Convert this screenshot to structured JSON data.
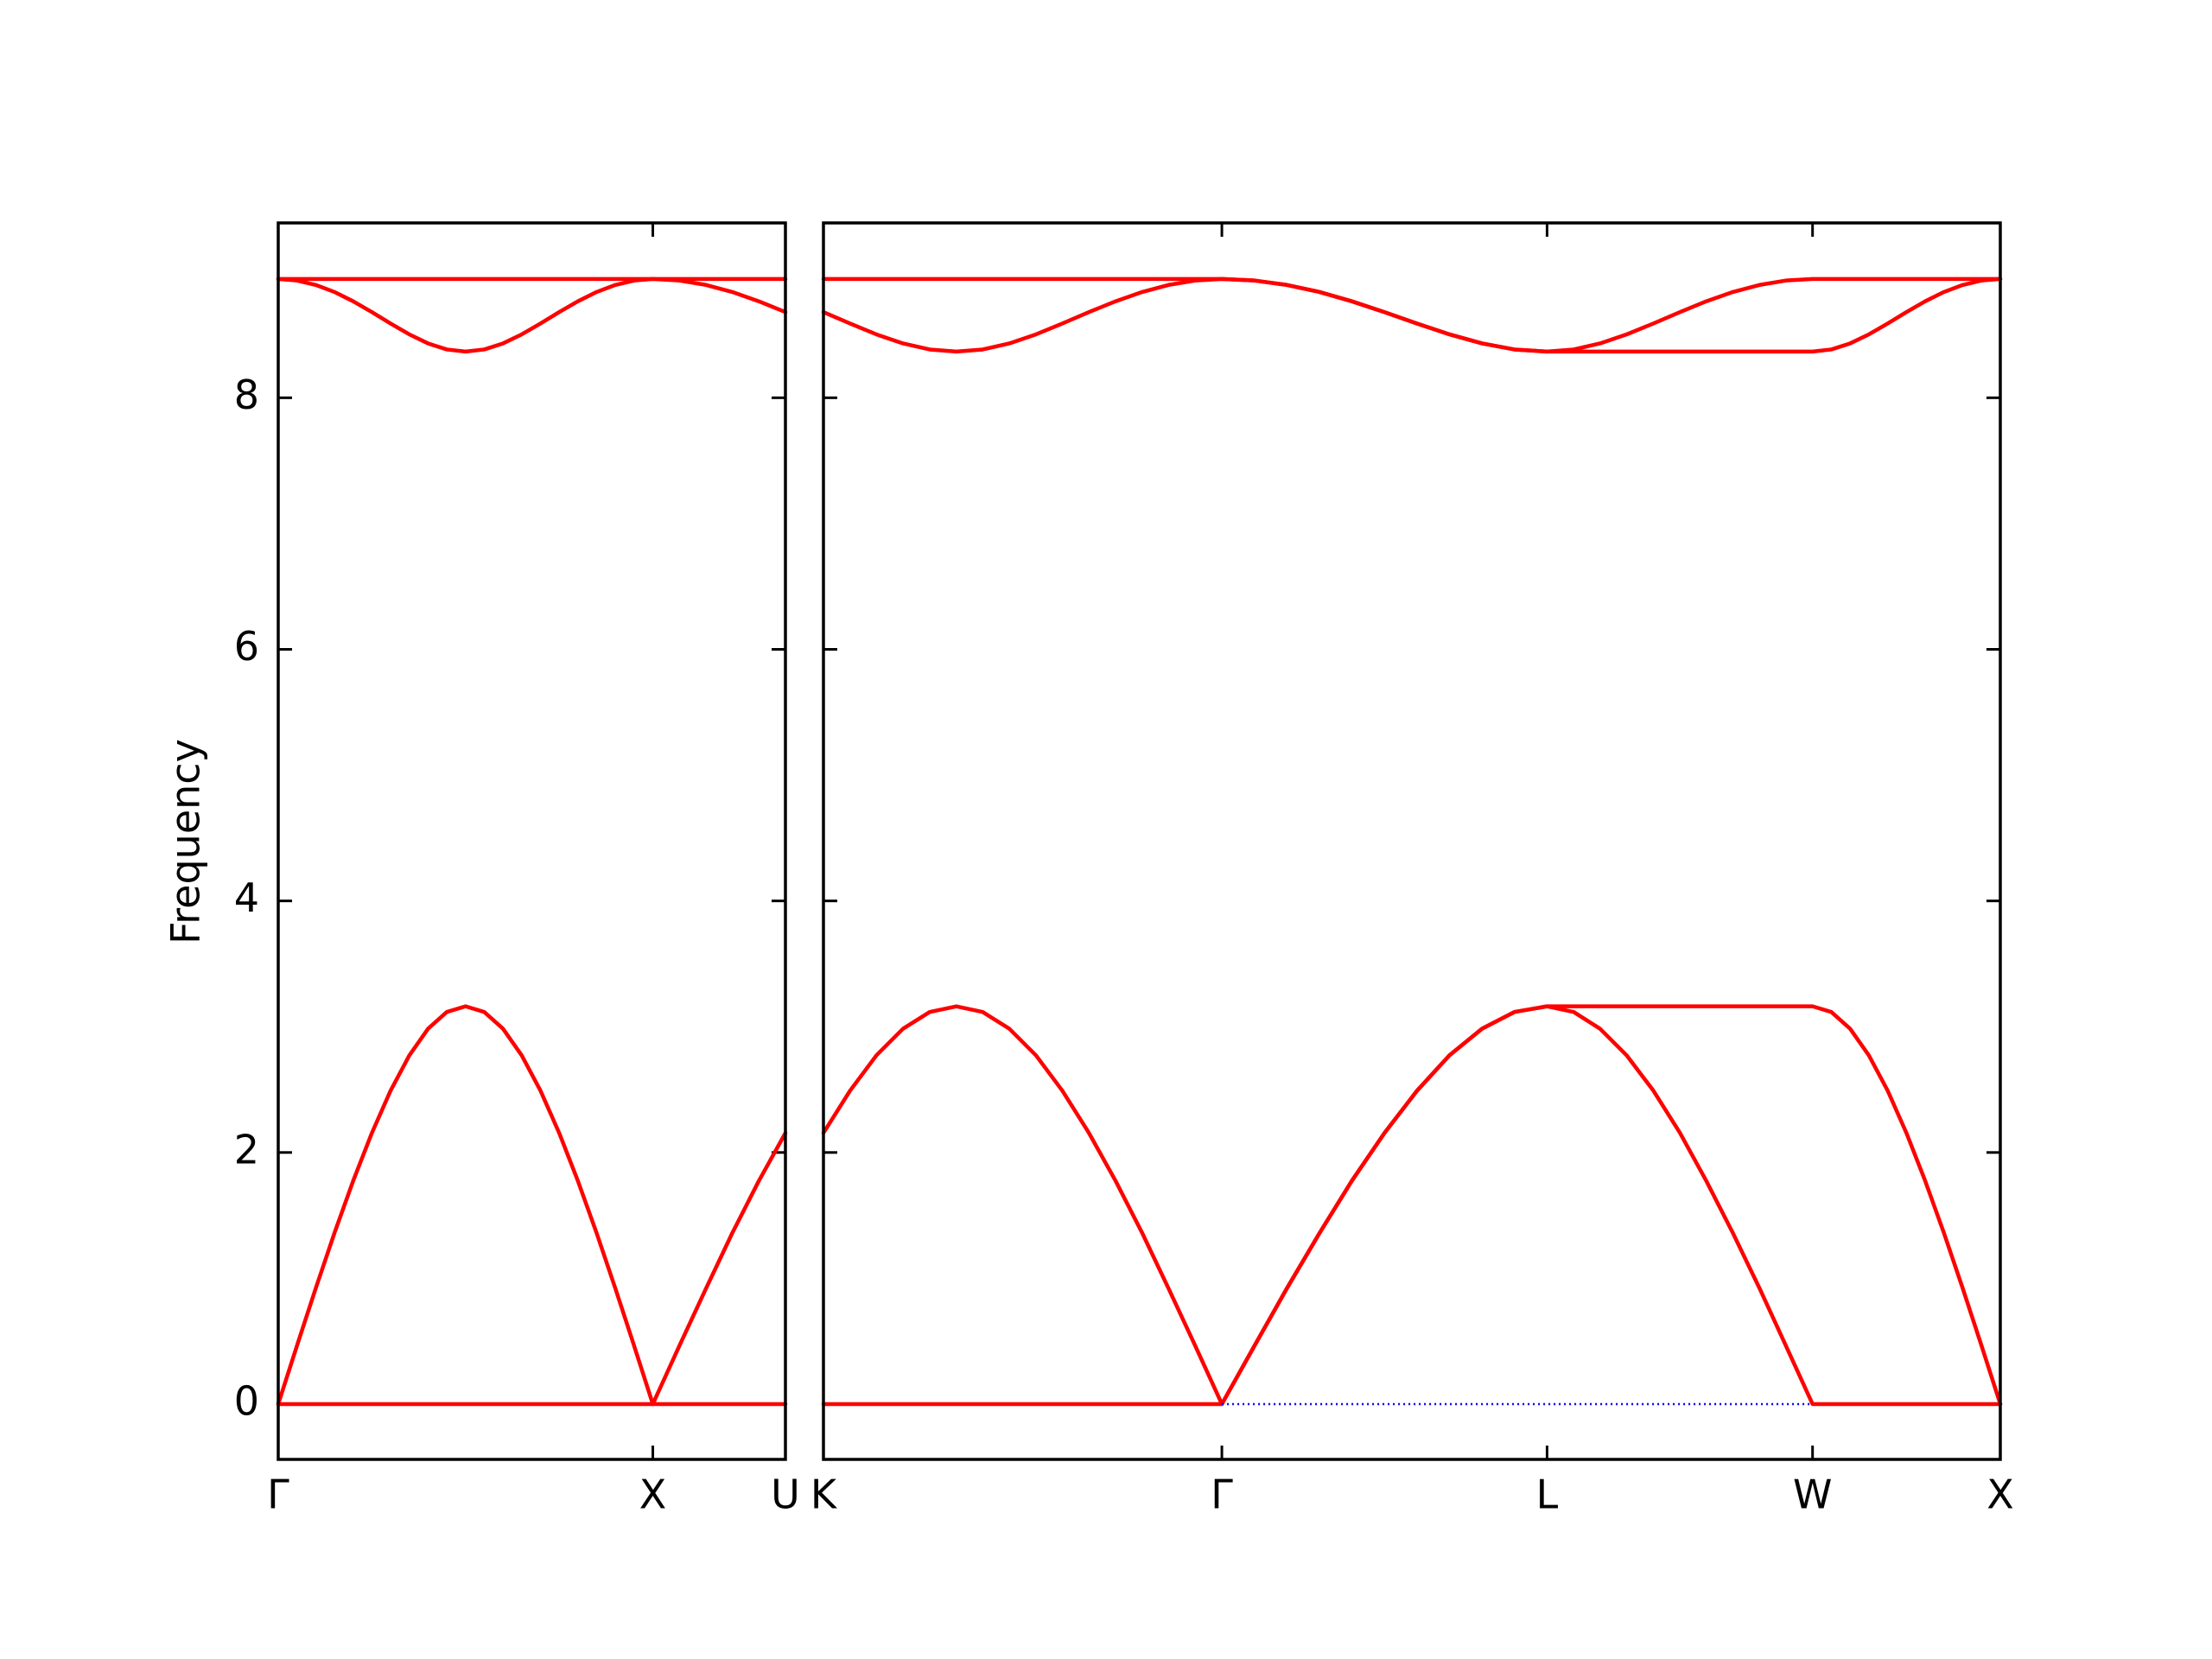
{
  "chart_data": [
    {
      "type": "line",
      "ylabel": "Frequency",
      "x": [
        0,
        0.05,
        0.1,
        0.15,
        0.2,
        0.25,
        0.3,
        0.35,
        0.4,
        0.45,
        0.5,
        0.55,
        0.6,
        0.65,
        0.7,
        0.75,
        0.8,
        0.85,
        0.9,
        0.95,
        1.0,
        1.071,
        1.142,
        1.212,
        1.283,
        1.354
      ],
      "xlim": [
        0,
        1.354
      ],
      "xticks": [
        {
          "value": 0,
          "label": "Γ"
        },
        {
          "value": 1.0,
          "label": "X"
        },
        {
          "value": 1.354,
          "label": "U"
        }
      ],
      "ylim": [
        -0.44,
        9.39
      ],
      "yticks": [
        0,
        2,
        4,
        6,
        8
      ],
      "series": [
        {
          "color": "#ff0000",
          "values": [
            0,
            0.464,
            0.919,
            1.359,
            1.774,
            2.155,
            2.492,
            2.772,
            2.984,
            3.117,
            3.162,
            3.117,
            2.984,
            2.772,
            2.492,
            2.155,
            1.774,
            1.359,
            0.919,
            0.464,
            0,
            0.464,
            0.919,
            1.359,
            1.774,
            2.155
          ]
        },
        {
          "color": "#ff0000",
          "values": [
            0,
            0,
            0,
            0,
            0,
            0,
            0,
            0,
            0,
            0,
            0,
            0,
            0,
            0,
            0,
            0,
            0,
            0,
            0,
            0,
            0,
            0,
            0,
            0,
            0,
            0
          ]
        },
        {
          "color": "#ff0000",
          "values": [
            8.944,
            8.932,
            8.897,
            8.841,
            8.767,
            8.681,
            8.59,
            8.504,
            8.432,
            8.384,
            8.367,
            8.384,
            8.432,
            8.504,
            8.59,
            8.681,
            8.767,
            8.841,
            8.897,
            8.932,
            8.944,
            8.932,
            8.897,
            8.841,
            8.767,
            8.681
          ]
        },
        {
          "color": "#ff0000",
          "values": [
            8.944,
            8.944,
            8.944,
            8.944,
            8.944,
            8.944,
            8.944,
            8.944,
            8.944,
            8.944,
            8.944,
            8.944,
            8.944,
            8.944,
            8.944,
            8.944,
            8.944,
            8.944,
            8.944,
            8.944,
            8.944,
            8.944,
            8.944,
            8.944,
            8.944,
            8.944
          ]
        }
      ]
    },
    {
      "type": "line",
      "x": [
        1.354,
        1.425,
        1.495,
        1.566,
        1.637,
        1.708,
        1.778,
        1.849,
        1.92,
        1.99,
        2.061,
        2.132,
        2.203,
        2.273,
        2.344,
        2.415,
        2.502,
        2.588,
        2.675,
        2.761,
        2.848,
        2.935,
        3.021,
        3.108,
        3.194,
        3.281,
        3.352,
        3.422,
        3.493,
        3.564,
        3.635,
        3.705,
        3.776,
        3.847,
        3.917,
        3.988,
        4.038,
        4.088,
        4.138,
        4.188,
        4.238,
        4.288,
        4.338,
        4.388,
        4.438,
        4.488
      ],
      "xlim": [
        1.354,
        4.488
      ],
      "xticks": [
        {
          "value": 1.354,
          "label": "K"
        },
        {
          "value": 2.415,
          "label": "Γ"
        },
        {
          "value": 3.281,
          "label": "L"
        },
        {
          "value": 3.988,
          "label": "W"
        },
        {
          "value": 4.488,
          "label": "X"
        }
      ],
      "ylim": [
        -0.44,
        9.39
      ],
      "series": [
        {
          "color": "#ff0000",
          "values": [
            2.155,
            2.492,
            2.772,
            2.984,
            3.117,
            3.162,
            3.117,
            2.984,
            2.772,
            2.492,
            2.155,
            1.774,
            1.359,
            0.919,
            0.464,
            0,
            0.464,
            0.919,
            1.359,
            1.774,
            2.155,
            2.492,
            2.772,
            2.984,
            3.117,
            3.162,
            3.117,
            2.984,
            2.772,
            2.492,
            2.155,
            1.774,
            1.359,
            0.919,
            0.464,
            0,
            0,
            0,
            0,
            0,
            0,
            0,
            0,
            0,
            0,
            0
          ]
        },
        {
          "color": "#ff0000",
          "values": [
            0,
            0,
            0,
            0,
            0,
            0,
            0,
            0,
            0,
            0,
            0,
            0,
            0,
            0,
            0,
            0,
            0.464,
            0.919,
            1.359,
            1.774,
            2.155,
            2.492,
            2.772,
            2.984,
            3.117,
            3.162,
            3.162,
            3.162,
            3.162,
            3.162,
            3.162,
            3.162,
            3.162,
            3.162,
            3.162,
            3.162,
            3.117,
            2.984,
            2.772,
            2.492,
            2.155,
            1.774,
            1.359,
            0.919,
            0.464,
            0
          ]
        },
        {
          "color": "#0000ff",
          "linestyle": "dotted",
          "values": [
            null,
            null,
            null,
            null,
            null,
            null,
            null,
            null,
            null,
            null,
            null,
            null,
            null,
            null,
            null,
            0,
            0,
            0,
            0,
            0,
            0,
            0,
            0,
            0,
            0,
            0,
            0,
            0,
            0,
            0,
            0,
            0,
            0,
            0,
            0,
            0,
            null,
            null,
            null,
            null,
            null,
            null,
            null,
            null,
            null,
            null
          ]
        },
        {
          "color": "#ff0000",
          "values": [
            8.944,
            8.944,
            8.944,
            8.944,
            8.944,
            8.944,
            8.944,
            8.944,
            8.944,
            8.944,
            8.944,
            8.944,
            8.944,
            8.944,
            8.944,
            8.944,
            8.932,
            8.897,
            8.841,
            8.767,
            8.681,
            8.59,
            8.504,
            8.432,
            8.384,
            8.367,
            8.384,
            8.432,
            8.504,
            8.59,
            8.681,
            8.767,
            8.841,
            8.897,
            8.932,
            8.944,
            8.944,
            8.944,
            8.944,
            8.944,
            8.944,
            8.944,
            8.944,
            8.944,
            8.944,
            8.944
          ]
        },
        {
          "color": "#ff0000",
          "values": [
            8.681,
            8.59,
            8.504,
            8.432,
            8.384,
            8.367,
            8.384,
            8.432,
            8.504,
            8.59,
            8.681,
            8.767,
            8.841,
            8.897,
            8.932,
            8.944,
            8.932,
            8.897,
            8.841,
            8.767,
            8.681,
            8.59,
            8.504,
            8.432,
            8.384,
            8.367,
            8.367,
            8.367,
            8.367,
            8.367,
            8.367,
            8.367,
            8.367,
            8.367,
            8.367,
            8.367,
            8.384,
            8.432,
            8.504,
            8.59,
            8.681,
            8.767,
            8.841,
            8.897,
            8.932,
            8.944
          ]
        }
      ]
    }
  ]
}
